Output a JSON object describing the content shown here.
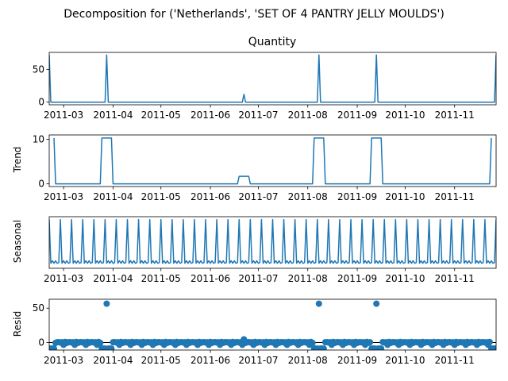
{
  "figure": {
    "suptitle": "Decomposition for ('Netherlands', 'SET OF 4 PANTRY JELLY MOULDS')",
    "line_color": "#1f77b4",
    "background": "#ffffff"
  },
  "chart_data": [
    {
      "type": "line",
      "title": "Quantity",
      "ylabel": "",
      "xlabel": "",
      "x_range": [
        "2011-02-20",
        "2011-11-27"
      ],
      "ylim": [
        -4,
        76
      ],
      "grid": false,
      "xticks": [
        "2011-03-01",
        "2011-04-01",
        "2011-05-01",
        "2011-06-01",
        "2011-07-01",
        "2011-08-01",
        "2011-09-01",
        "2011-10-01",
        "2011-11-01"
      ],
      "xtick_labels": [
        "2011-03",
        "2011-04",
        "2011-05",
        "2011-06",
        "2011-07",
        "2011-08",
        "2011-09",
        "2011-10",
        "2011-11"
      ],
      "yticks": [
        0,
        50
      ],
      "ytick_labels": [
        "0",
        "50"
      ],
      "series": [
        {
          "points": [
            [
              "2011-02-20",
              72
            ],
            [
              "2011-02-21",
              0
            ],
            [
              "2011-03-27",
              0
            ],
            [
              "2011-03-28",
              72
            ],
            [
              "2011-03-29",
              0
            ],
            [
              "2011-06-21",
              0
            ],
            [
              "2011-06-22",
              12
            ],
            [
              "2011-06-23",
              0
            ],
            [
              "2011-08-07",
              0
            ],
            [
              "2011-08-08",
              72
            ],
            [
              "2011-08-09",
              0
            ],
            [
              "2011-09-12",
              0
            ],
            [
              "2011-09-13",
              72
            ],
            [
              "2011-09-14",
              0
            ],
            [
              "2011-11-26",
              0
            ],
            [
              "2011-11-27",
              72
            ]
          ]
        }
      ]
    },
    {
      "type": "line",
      "title": "",
      "ylabel": "Trend",
      "xlabel": "",
      "x_range": [
        "2011-02-20",
        "2011-11-27"
      ],
      "ylim": [
        -0.6,
        11
      ],
      "grid": false,
      "xticks": [
        "2011-03-01",
        "2011-04-01",
        "2011-05-01",
        "2011-06-01",
        "2011-07-01",
        "2011-08-01",
        "2011-09-01",
        "2011-10-01",
        "2011-11-01"
      ],
      "xtick_labels": [
        "2011-03",
        "2011-04",
        "2011-05",
        "2011-06",
        "2011-07",
        "2011-08",
        "2011-09",
        "2011-10",
        "2011-11"
      ],
      "yticks": [
        0,
        10
      ],
      "ytick_labels": [
        "0",
        "10"
      ],
      "series": [
        {
          "points": [
            [
              "2011-02-23",
              10.3
            ],
            [
              "2011-02-24",
              0
            ],
            [
              "2011-03-24",
              0
            ],
            [
              "2011-03-25",
              10.3
            ],
            [
              "2011-03-31",
              10.3
            ],
            [
              "2011-04-01",
              0
            ],
            [
              "2011-06-18",
              0
            ],
            [
              "2011-06-19",
              1.7
            ],
            [
              "2011-06-25",
              1.7
            ],
            [
              "2011-06-26",
              0
            ],
            [
              "2011-08-04",
              0
            ],
            [
              "2011-08-05",
              10.3
            ],
            [
              "2011-08-11",
              10.3
            ],
            [
              "2011-08-12",
              0
            ],
            [
              "2011-09-09",
              0
            ],
            [
              "2011-09-10",
              10.3
            ],
            [
              "2011-09-16",
              10.3
            ],
            [
              "2011-09-17",
              0
            ],
            [
              "2011-11-23",
              0
            ],
            [
              "2011-11-24",
              10.3
            ]
          ]
        }
      ]
    },
    {
      "type": "line",
      "title": "",
      "ylabel": "Seasonal",
      "xlabel": "",
      "x_range": [
        "2011-02-20",
        "2011-11-27"
      ],
      "ylim": [
        -1.8,
        5.4
      ],
      "grid": false,
      "xticks": [
        "2011-03-01",
        "2011-04-01",
        "2011-05-01",
        "2011-06-01",
        "2011-07-01",
        "2011-08-01",
        "2011-09-01",
        "2011-10-01",
        "2011-11-01"
      ],
      "xtick_labels": [
        "2011-03",
        "2011-04",
        "2011-05",
        "2011-06",
        "2011-07",
        "2011-08",
        "2011-09",
        "2011-10",
        "2011-11"
      ],
      "yticks": [],
      "ytick_labels": [],
      "weekly_pattern": [
        5.0,
        -1.1,
        -0.75,
        -1.1,
        -0.75,
        -1.1,
        -1.0
      ],
      "start_date": "2011-02-20"
    },
    {
      "type": "scatter",
      "title": "",
      "ylabel": "Resid",
      "xlabel": "",
      "x_range": [
        "2011-02-20",
        "2011-11-27"
      ],
      "ylim": [
        -11,
        63
      ],
      "grid": false,
      "xticks": [
        "2011-03-01",
        "2011-04-01",
        "2011-05-01",
        "2011-06-01",
        "2011-07-01",
        "2011-08-01",
        "2011-09-01",
        "2011-10-01",
        "2011-11-01"
      ],
      "xtick_labels": [
        "2011-03",
        "2011-04",
        "2011-05",
        "2011-06",
        "2011-07",
        "2011-08",
        "2011-09",
        "2011-10",
        "2011-11"
      ],
      "yticks": [
        0,
        50
      ],
      "ytick_labels": [
        "0",
        "50"
      ],
      "baseline": 0,
      "outliers": [
        [
          "2011-03-28",
          56.5
        ],
        [
          "2011-08-08",
          56.5
        ],
        [
          "2011-09-13",
          56.5
        ],
        [
          "2011-06-22",
          4.6
        ]
      ],
      "low_windows": [
        [
          "2011-02-20",
          "2011-02-23"
        ],
        [
          "2011-03-25",
          "2011-03-31"
        ],
        [
          "2011-08-05",
          "2011-08-11"
        ],
        [
          "2011-09-10",
          "2011-09-16"
        ],
        [
          "2011-11-24",
          "2011-11-27"
        ]
      ],
      "low_value": -8.8,
      "weekly_residual": [
        0,
        0.4,
        -3.4,
        0.8,
        -0.6,
        0.4,
        0.6
      ]
    }
  ]
}
